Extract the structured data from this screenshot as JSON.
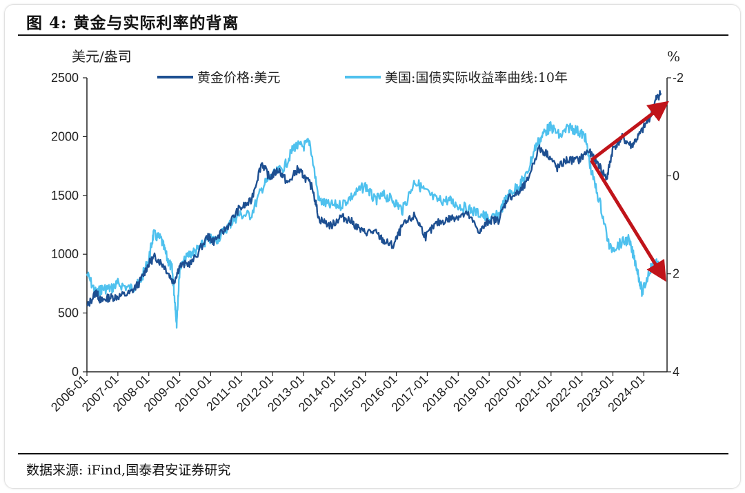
{
  "header": {
    "title": "图 4:  黄金与实际利率的背离"
  },
  "footer": {
    "source": "数据来源:  iFind,国泰君安证券研究"
  },
  "colors": {
    "gold": "#1d4f91",
    "real_yield": "#4fc1ee",
    "arrow": "#c0141a"
  },
  "chart_data": {
    "type": "line",
    "title": "黄金与实际利率的背离",
    "left_unit": "美元/盎司",
    "right_unit": "%",
    "ylim_left": [
      0,
      2500
    ],
    "ylim_right": [
      4,
      -2
    ],
    "right_axis_inverted": true,
    "yticks_left": [
      "0",
      "500",
      "1000",
      "1500",
      "2000",
      "2500"
    ],
    "yticks_right": [
      "4",
      "2",
      "0",
      "-2"
    ],
    "xlabels": [
      "2006-01",
      "2007-01",
      "2008-01",
      "2009-01",
      "2010-01",
      "2011-01",
      "2012-01",
      "2013-01",
      "2014-01",
      "2015-01",
      "2016-01",
      "2017-01",
      "2018-01",
      "2019-01",
      "2020-01",
      "2021-01",
      "2022-01",
      "2023-01",
      "2024-01"
    ],
    "legend": [
      "黄金价格:美元",
      "美国:国债实际收益率曲线:10年"
    ],
    "grid": false,
    "legend_position": "top",
    "series": [
      {
        "name": "黄金价格:美元",
        "axis": "left",
        "x": [
          2006.0,
          2006.3,
          2006.45,
          2006.7,
          2007.0,
          2007.4,
          2007.7,
          2008.0,
          2008.2,
          2008.5,
          2008.8,
          2009.0,
          2009.4,
          2009.9,
          2010.1,
          2010.5,
          2010.9,
          2011.3,
          2011.65,
          2011.9,
          2012.2,
          2012.5,
          2012.8,
          2013.0,
          2013.3,
          2013.5,
          2013.9,
          2014.2,
          2014.5,
          2014.9,
          2015.3,
          2015.6,
          2015.9,
          2016.2,
          2016.6,
          2016.95,
          2017.3,
          2017.7,
          2017.95,
          2018.3,
          2018.7,
          2019.0,
          2019.3,
          2019.6,
          2019.95,
          2020.2,
          2020.6,
          2020.9,
          2021.2,
          2021.5,
          2021.9,
          2022.2,
          2022.5,
          2022.8,
          2023.0,
          2023.3,
          2023.6,
          2023.9,
          2024.2,
          2024.4,
          2024.55
        ],
        "values": [
          550,
          680,
          600,
          630,
          640,
          670,
          760,
          920,
          980,
          900,
          760,
          900,
          930,
          1150,
          1110,
          1220,
          1380,
          1450,
          1780,
          1650,
          1720,
          1600,
          1720,
          1670,
          1560,
          1300,
          1240,
          1320,
          1290,
          1190,
          1190,
          1110,
          1070,
          1240,
          1330,
          1150,
          1260,
          1300,
          1320,
          1340,
          1190,
          1290,
          1290,
          1480,
          1520,
          1600,
          1900,
          1850,
          1730,
          1800,
          1800,
          1880,
          1780,
          1640,
          1900,
          1990,
          1920,
          2030,
          2170,
          2320,
          2370
        ]
      },
      {
        "name": "美国:国债实际收益率曲线:10年",
        "axis": "right",
        "x": [
          2006.0,
          2006.3,
          2006.5,
          2006.8,
          2007.0,
          2007.4,
          2007.7,
          2008.0,
          2008.15,
          2008.4,
          2008.6,
          2008.75,
          2008.85,
          2008.9,
          2009.0,
          2009.3,
          2009.6,
          2009.9,
          2010.2,
          2010.6,
          2010.9,
          2011.3,
          2011.7,
          2012.0,
          2012.4,
          2012.7,
          2013.0,
          2013.2,
          2013.5,
          2013.8,
          2014.2,
          2014.6,
          2015.0,
          2015.3,
          2015.6,
          2015.9,
          2016.2,
          2016.6,
          2016.9,
          2017.3,
          2017.7,
          2018.0,
          2018.4,
          2018.8,
          2019.0,
          2019.3,
          2019.6,
          2019.95,
          2020.2,
          2020.5,
          2020.8,
          2021.0,
          2021.3,
          2021.6,
          2021.9,
          2022.1,
          2022.3,
          2022.6,
          2022.9,
          2023.2,
          2023.5,
          2023.75,
          2023.95,
          2024.2,
          2024.4,
          2024.55
        ],
        "values": [
          2.0,
          2.4,
          2.3,
          2.3,
          2.2,
          2.3,
          2.2,
          1.7,
          1.2,
          1.3,
          1.7,
          1.9,
          2.6,
          3.0,
          1.9,
          1.6,
          1.5,
          1.3,
          1.3,
          1.0,
          0.8,
          0.8,
          0.2,
          0.0,
          -0.2,
          -0.6,
          -0.6,
          -0.7,
          0.5,
          0.6,
          0.6,
          0.4,
          0.2,
          0.5,
          0.4,
          0.5,
          0.7,
          0.1,
          0.3,
          0.5,
          0.5,
          0.6,
          0.7,
          0.8,
          0.9,
          0.8,
          0.4,
          0.2,
          0.0,
          -0.6,
          -0.9,
          -1.0,
          -0.8,
          -1.0,
          -0.9,
          -0.8,
          -0.1,
          0.6,
          1.5,
          1.4,
          1.3,
          1.8,
          2.4,
          1.9,
          1.8,
          1.9
        ]
      }
    ],
    "annotations": [
      {
        "type": "arrow",
        "from_x": 2022.3,
        "from_y_left": 1800,
        "to_x": 2024.55,
        "to_y_left": 2250,
        "meaning": "gold up"
      },
      {
        "type": "arrow",
        "from_x": 2022.3,
        "from_y_left": 1800,
        "to_x": 2024.55,
        "to_y_left": 840,
        "meaning": "real yield up"
      }
    ]
  }
}
